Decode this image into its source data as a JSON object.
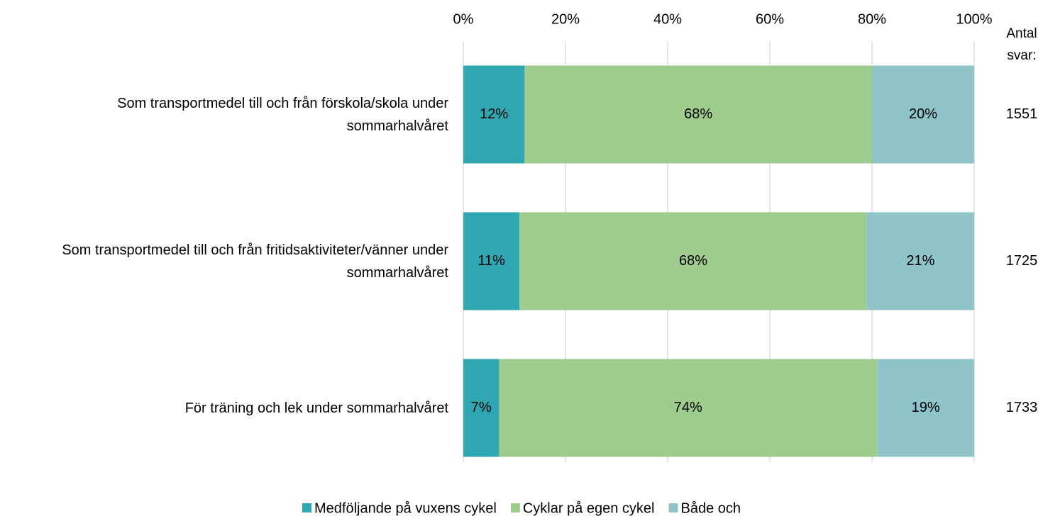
{
  "chart_data": {
    "type": "stacked-bar-horizontal",
    "categories": [
      "Som transportmedel till och från förskola/skola under sommarhalvåret",
      "Som transportmedel till och från fritidsaktiviteter/vänner under sommarhalvåret",
      "För träning och lek under sommarhalvåret"
    ],
    "series": [
      {
        "name": "Medföljande på vuxens cykel",
        "color": "#2ea7b2",
        "values": [
          12,
          11,
          7
        ],
        "value_labels": [
          "12%",
          "11%",
          "7%"
        ]
      },
      {
        "name": "Cyklar på egen cykel",
        "color": "#9ecb8e",
        "values": [
          68,
          68,
          74
        ],
        "value_labels": [
          "68%",
          "68%",
          "74%"
        ]
      },
      {
        "name": "Både och",
        "color": "#8fc4c8",
        "values": [
          20,
          21,
          19
        ],
        "value_labels": [
          "20%",
          "21%",
          "19%"
        ]
      }
    ],
    "xlim": [
      0,
      100
    ],
    "xticks": [
      {
        "value": 0,
        "label": "0%"
      },
      {
        "value": 20,
        "label": "20%"
      },
      {
        "value": 40,
        "label": "40%"
      },
      {
        "value": 60,
        "label": "60%"
      },
      {
        "value": 80,
        "label": "80%"
      },
      {
        "value": 100,
        "label": "100%"
      }
    ],
    "grid": true,
    "legend": "bottom",
    "counts_label": "Antal svar:",
    "counts": [
      1551,
      1725,
      1733
    ]
  }
}
